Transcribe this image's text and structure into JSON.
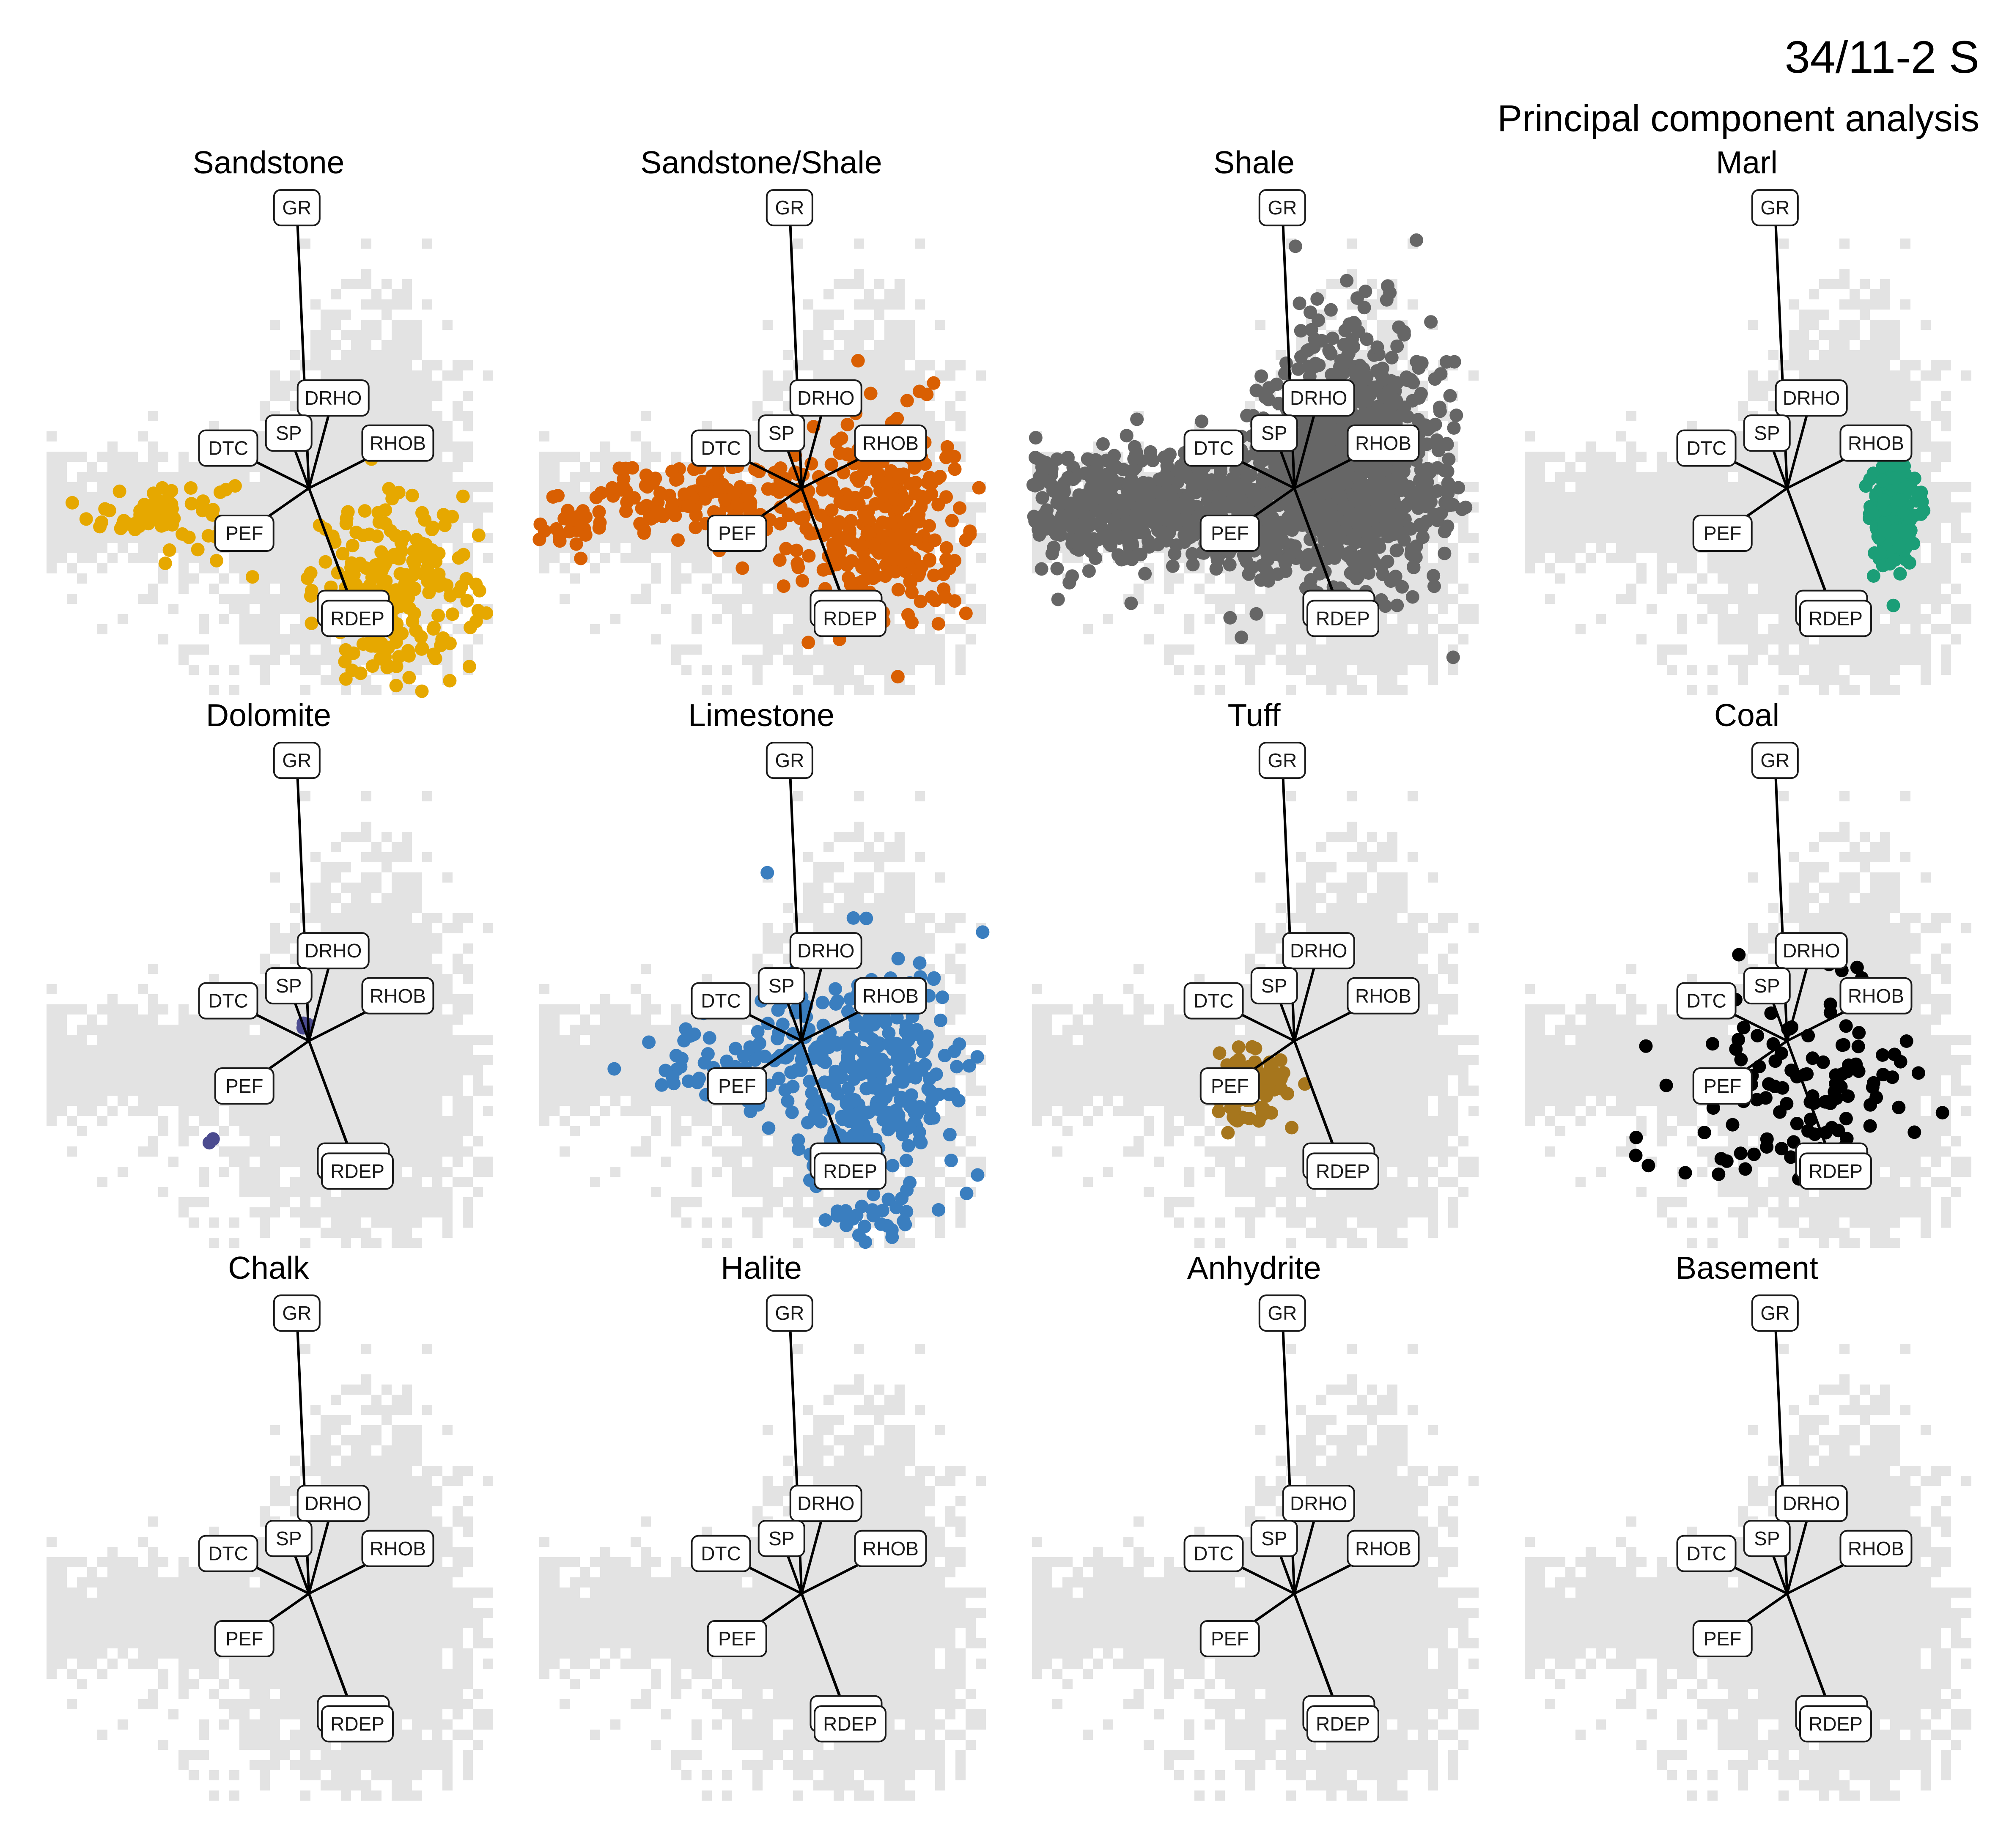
{
  "title": "34/11-2 S",
  "subtitle": "Principal component analysis",
  "chart_data": {
    "type": "scatter",
    "facets": [
      {
        "name": "Sandstone",
        "color": "#E6A800",
        "clusters": [
          {
            "cx": -3.6,
            "cy": -0.5,
            "sx": 0.9,
            "sy": 0.35,
            "n": 70
          },
          {
            "cx": 2.1,
            "cy": -2.1,
            "sx": 1.0,
            "sy": 0.9,
            "n": 230
          }
        ]
      },
      {
        "name": "Sandstone/Shale",
        "color": "#D95F02",
        "clusters": [
          {
            "cx": -2.6,
            "cy": -0.2,
            "sx": 1.6,
            "sy": 0.4,
            "n": 140
          },
          {
            "cx": 1.9,
            "cy": -0.6,
            "sx": 1.1,
            "sy": 1.0,
            "n": 320
          },
          {
            "cx": -6.2,
            "cy": -0.9,
            "sx": 0.6,
            "sy": 0.2,
            "n": 20
          }
        ]
      },
      {
        "name": "Shale",
        "color": "#666666",
        "clusters": [
          {
            "cx": -3.8,
            "cy": -0.4,
            "sx": 2.0,
            "sy": 0.55,
            "n": 600
          },
          {
            "cx": 1.5,
            "cy": 0.7,
            "sx": 1.1,
            "sy": 1.3,
            "n": 700
          },
          {
            "cx": 0.5,
            "cy": -0.3,
            "sx": 1.5,
            "sy": 0.8,
            "n": 400
          }
        ]
      },
      {
        "name": "Marl",
        "color": "#1B9E77",
        "clusters": [
          {
            "cx": 2.6,
            "cy": -0.5,
            "sx": 0.28,
            "sy": 0.55,
            "n": 200
          }
        ]
      },
      {
        "name": "Dolomite",
        "color": "#4B4B8F",
        "clusters": [
          {
            "cx": -0.1,
            "cy": 0.3,
            "sx": 0.05,
            "sy": 0.05,
            "n": 3
          },
          {
            "cx": -2.4,
            "cy": -2.0,
            "sx": 0.04,
            "sy": 0.04,
            "n": 2
          }
        ]
      },
      {
        "name": "Limestone",
        "color": "#3A7EBF",
        "clusters": [
          {
            "cx": 1.6,
            "cy": -0.6,
            "sx": 1.1,
            "sy": 1.1,
            "n": 320
          },
          {
            "cx": -1.7,
            "cy": -0.3,
            "sx": 1.1,
            "sy": 0.5,
            "n": 60
          },
          {
            "cx": 1.6,
            "cy": -3.6,
            "sx": 0.7,
            "sy": 0.3,
            "n": 25
          }
        ]
      },
      {
        "name": "Tuff",
        "color": "#A6761D",
        "clusters": [
          {
            "cx": -1.2,
            "cy": -0.9,
            "sx": 0.45,
            "sy": 0.3,
            "n": 120
          }
        ]
      },
      {
        "name": "Coal",
        "color": "#000000",
        "clusters": [
          {
            "cx": 0.6,
            "cy": -1.0,
            "sx": 1.6,
            "sy": 1.1,
            "n": 120
          }
        ]
      },
      {
        "name": "Chalk",
        "color": "#000000",
        "clusters": []
      },
      {
        "name": "Halite",
        "color": "#000000",
        "clusters": []
      },
      {
        "name": "Anhydrite",
        "color": "#000000",
        "clusters": []
      },
      {
        "name": "Basement",
        "color": "#000000",
        "clusters": []
      }
    ],
    "loadings": [
      {
        "name": "GR",
        "x": -0.3,
        "y": 5.6
      },
      {
        "name": "DRHO",
        "x": 0.6,
        "y": 1.8
      },
      {
        "name": "SP",
        "x": -0.5,
        "y": 1.1
      },
      {
        "name": "DTC",
        "x": -2.0,
        "y": 0.8
      },
      {
        "name": "RHOB",
        "x": 2.2,
        "y": 0.9
      },
      {
        "name": "PEF",
        "x": -1.6,
        "y": -0.9
      },
      {
        "name": "RMED",
        "x": 1.1,
        "y": -2.4
      },
      {
        "name": "RDEP",
        "x": 1.2,
        "y": -2.6
      }
    ],
    "xlim": [
      -6.5,
      4.5
    ],
    "ylim": [
      -4.1,
      6.2
    ],
    "background_color": "#e3e3e3"
  }
}
